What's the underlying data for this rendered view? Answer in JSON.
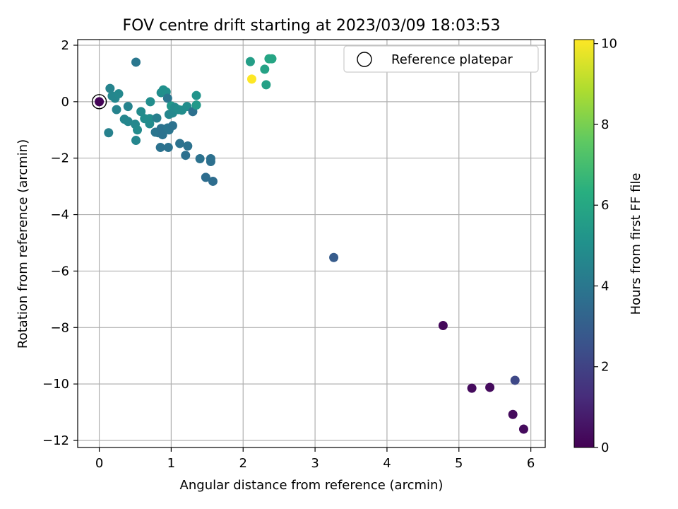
{
  "chart_data": {
    "type": "scatter",
    "title": "FOV centre drift starting at 2023/03/09 18:03:53",
    "xlabel": "Angular distance from reference (arcmin)",
    "ylabel": "Rotation from reference (arcmin)",
    "xlim": [
      -0.3,
      6.2
    ],
    "ylim": [
      -12.25,
      2.2
    ],
    "xticks": [
      0,
      1,
      2,
      3,
      4,
      5,
      6
    ],
    "yticks": [
      2,
      0,
      -2,
      -4,
      -6,
      -8,
      -10,
      -12
    ],
    "grid": true,
    "legend": {
      "placement": "top-right",
      "entries": [
        "Reference platepar"
      ]
    },
    "reference_point": {
      "x": 0,
      "y": 0
    },
    "colorbar": {
      "label": "Hours from first FF file",
      "min": 0,
      "max": 10.1,
      "ticks": [
        0,
        2,
        4,
        6,
        8,
        10
      ],
      "colormap": "viridis"
    },
    "series": [
      {
        "points": [
          {
            "x": 0.0,
            "y": 0.0,
            "c": 0.1
          },
          {
            "x": 0.51,
            "y": 1.4,
            "c": 4.0
          },
          {
            "x": 0.15,
            "y": 0.47,
            "c": 4.5
          },
          {
            "x": 0.18,
            "y": 0.2,
            "c": 4.6
          },
          {
            "x": 0.22,
            "y": 0.12,
            "c": 4.6
          },
          {
            "x": 0.27,
            "y": 0.28,
            "c": 4.7
          },
          {
            "x": 0.24,
            "y": -0.28,
            "c": 4.5
          },
          {
            "x": 0.13,
            "y": -1.1,
            "c": 4.4
          },
          {
            "x": 0.35,
            "y": -0.62,
            "c": 4.6
          },
          {
            "x": 0.4,
            "y": -0.17,
            "c": 4.5
          },
          {
            "x": 0.4,
            "y": -0.7,
            "c": 4.6
          },
          {
            "x": 0.5,
            "y": -0.8,
            "c": 4.7
          },
          {
            "x": 0.53,
            "y": -1.0,
            "c": 4.8
          },
          {
            "x": 0.51,
            "y": -1.37,
            "c": 4.6
          },
          {
            "x": 0.58,
            "y": -0.35,
            "c": 4.8
          },
          {
            "x": 0.63,
            "y": -0.6,
            "c": 4.9
          },
          {
            "x": 0.7,
            "y": -0.6,
            "c": 4.9
          },
          {
            "x": 0.7,
            "y": -0.78,
            "c": 4.8
          },
          {
            "x": 0.71,
            "y": 0.0,
            "c": 4.9
          },
          {
            "x": 0.8,
            "y": -0.58,
            "c": 4.3
          },
          {
            "x": 0.78,
            "y": -1.08,
            "c": 3.9
          },
          {
            "x": 0.82,
            "y": -1.1,
            "c": 3.9
          },
          {
            "x": 0.86,
            "y": -0.95,
            "c": 3.8
          },
          {
            "x": 0.88,
            "y": -1.17,
            "c": 3.8
          },
          {
            "x": 0.85,
            "y": -1.62,
            "c": 3.8
          },
          {
            "x": 0.96,
            "y": -1.62,
            "c": 3.8
          },
          {
            "x": 0.95,
            "y": -0.93,
            "c": 3.9
          },
          {
            "x": 0.97,
            "y": -1.0,
            "c": 3.9
          },
          {
            "x": 1.02,
            "y": -0.85,
            "c": 3.8
          },
          {
            "x": 0.86,
            "y": 0.32,
            "c": 4.9
          },
          {
            "x": 0.89,
            "y": 0.42,
            "c": 5.0
          },
          {
            "x": 0.93,
            "y": 0.35,
            "c": 5.0
          },
          {
            "x": 0.95,
            "y": 0.12,
            "c": 3.9
          },
          {
            "x": 0.97,
            "y": -0.45,
            "c": 4.6
          },
          {
            "x": 1.0,
            "y": -0.15,
            "c": 5.3
          },
          {
            "x": 1.02,
            "y": -0.4,
            "c": 4.7
          },
          {
            "x": 1.05,
            "y": -0.2,
            "c": 4.8
          },
          {
            "x": 1.1,
            "y": -0.28,
            "c": 4.9
          },
          {
            "x": 1.12,
            "y": -1.48,
            "c": 3.8
          },
          {
            "x": 1.15,
            "y": -0.3,
            "c": 4.9
          },
          {
            "x": 1.2,
            "y": -1.9,
            "c": 3.7
          },
          {
            "x": 1.22,
            "y": -0.17,
            "c": 4.9
          },
          {
            "x": 1.23,
            "y": -1.57,
            "c": 3.8
          },
          {
            "x": 1.3,
            "y": -0.35,
            "c": 3.7
          },
          {
            "x": 1.35,
            "y": 0.22,
            "c": 5.2
          },
          {
            "x": 1.35,
            "y": -0.12,
            "c": 5.4
          },
          {
            "x": 1.4,
            "y": -2.02,
            "c": 3.8
          },
          {
            "x": 1.48,
            "y": -2.68,
            "c": 3.6
          },
          {
            "x": 1.55,
            "y": -2.02,
            "c": 3.7
          },
          {
            "x": 1.55,
            "y": -2.12,
            "c": 3.7
          },
          {
            "x": 1.58,
            "y": -2.82,
            "c": 3.6
          },
          {
            "x": 2.1,
            "y": 1.42,
            "c": 5.6
          },
          {
            "x": 2.12,
            "y": 0.8,
            "c": 10.1
          },
          {
            "x": 2.3,
            "y": 1.15,
            "c": 5.8
          },
          {
            "x": 2.32,
            "y": 0.6,
            "c": 5.7
          },
          {
            "x": 2.36,
            "y": 1.52,
            "c": 5.9
          },
          {
            "x": 2.4,
            "y": 1.52,
            "c": 5.9
          },
          {
            "x": 3.26,
            "y": -5.52,
            "c": 2.9
          },
          {
            "x": 4.78,
            "y": -7.93,
            "c": 0.2
          },
          {
            "x": 5.18,
            "y": -10.15,
            "c": 0.3
          },
          {
            "x": 5.43,
            "y": -10.12,
            "c": 0.3
          },
          {
            "x": 5.78,
            "y": -9.87,
            "c": 2.2
          },
          {
            "x": 5.75,
            "y": -11.08,
            "c": 0.3
          },
          {
            "x": 5.9,
            "y": -11.6,
            "c": 0.3
          }
        ]
      }
    ]
  }
}
